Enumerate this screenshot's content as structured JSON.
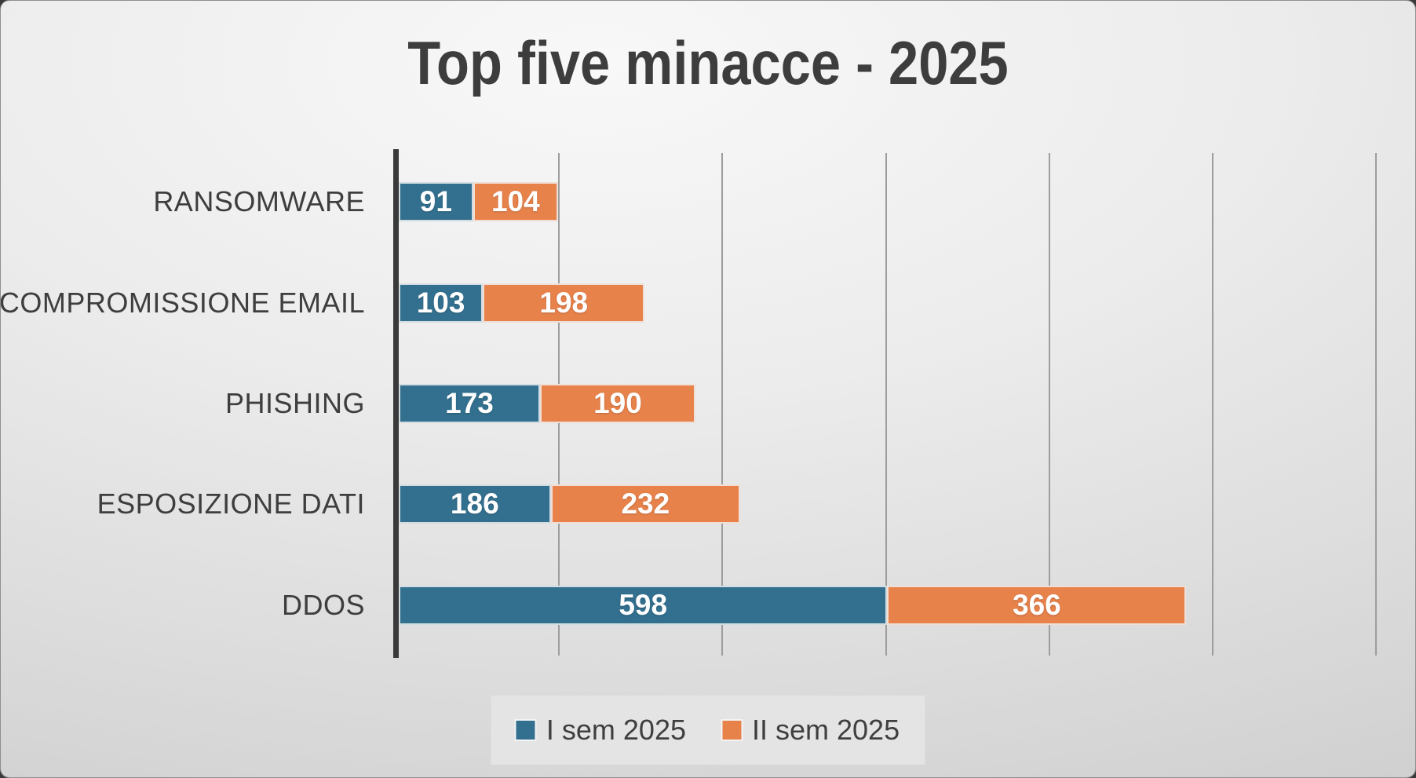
{
  "chart_data": {
    "type": "bar",
    "orientation": "horizontal-stacked",
    "title": "Top five minacce - 2025",
    "categories": [
      "RANSOMWARE",
      "COMPROMISSIONE EMAIL",
      "PHISHING",
      "ESPOSIZIONE DATI",
      "DDOS"
    ],
    "series": [
      {
        "name": "I sem 2025",
        "color": "#33708F",
        "values": [
          91,
          103,
          173,
          186,
          598
        ]
      },
      {
        "name": "II sem 2025",
        "color": "#E7824B",
        "values": [
          104,
          198,
          190,
          232,
          366
        ]
      }
    ],
    "totals": [
      195,
      301,
      363,
      418,
      964
    ],
    "xlim": [
      0,
      1200
    ],
    "gridline_interval": 200,
    "grid": true,
    "legend_position": "bottom",
    "value_labels": "inside-white"
  },
  "colors": {
    "series1": "#33708F",
    "series2": "#E7824B",
    "title_text": "#3d3d3d",
    "category_text": "#3e3e3e",
    "value_text": "#ffffff",
    "gridline": "#9d9d9d",
    "axis_line": "#3a3a3a",
    "legend_background": "#e4e4e4"
  }
}
